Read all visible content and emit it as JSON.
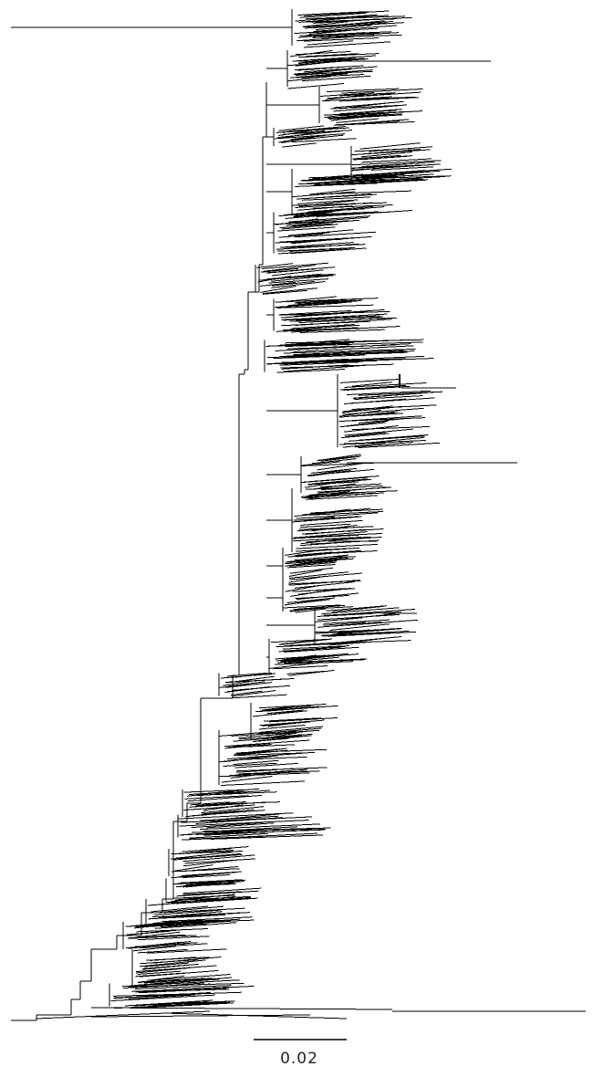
{
  "figure": {
    "type": "phylogenetic-tree",
    "layout": "rectangular-ladderized",
    "line_color": "#000000",
    "background": "#ffffff"
  },
  "scale_bar": {
    "label": "0.02",
    "value": 0.02
  }
}
